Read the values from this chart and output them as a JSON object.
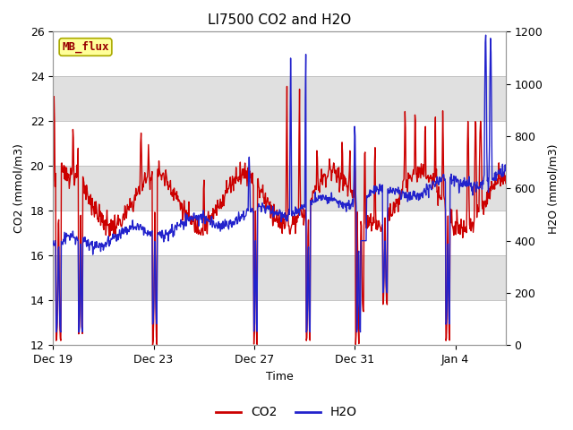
{
  "title": "LI7500 CO2 and H2O",
  "xlabel": "Time",
  "ylabel_left": "CO2 (mmol/m3)",
  "ylabel_right": "H2O (mmol/m3)",
  "co2_ylim": [
    12,
    26
  ],
  "h2o_ylim": [
    0,
    1200
  ],
  "co2_yticks": [
    12,
    14,
    16,
    18,
    20,
    22,
    24,
    26
  ],
  "h2o_yticks": [
    0,
    200,
    400,
    600,
    800,
    1000,
    1200
  ],
  "co2_color": "#cc0000",
  "h2o_color": "#2222cc",
  "background_color": "#ffffff",
  "plot_bg_color": "#e8e8e8",
  "white_band_color": "#ffffff",
  "gray_band_color": "#e0e0e0",
  "mb_flux_box_color": "#ffff99",
  "mb_flux_text_color": "#990000",
  "mb_flux_border_color": "#aaaa00",
  "xtick_labels": [
    "Dec 19",
    "Dec 23",
    "Dec 27",
    "Dec 31",
    "Jan 4"
  ],
  "xtick_positions_days": [
    0,
    4,
    8,
    12,
    16
  ],
  "title_fontsize": 11,
  "axis_label_fontsize": 9,
  "tick_fontsize": 9,
  "legend_fontsize": 10,
  "line_width": 1.0
}
